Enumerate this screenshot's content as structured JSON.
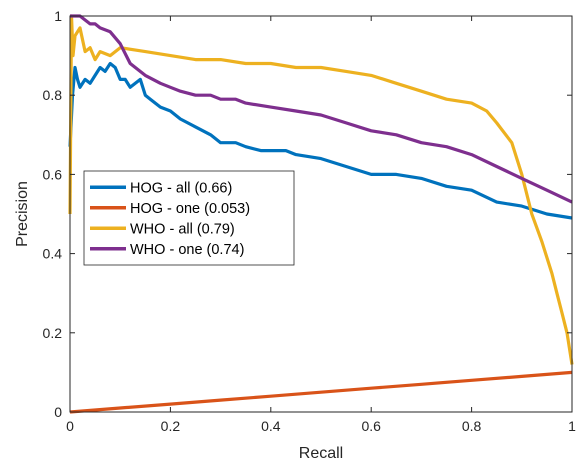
{
  "chart_data": {
    "type": "line",
    "title": "",
    "xlabel": "Recall",
    "ylabel": "Precision",
    "xlim": [
      0,
      1
    ],
    "ylim": [
      0,
      1
    ],
    "x_ticks": [
      0,
      0.2,
      0.4,
      0.6,
      0.8,
      1
    ],
    "y_ticks": [
      0,
      0.2,
      0.4,
      0.6,
      0.8,
      1
    ],
    "x_tick_labels": [
      "0",
      "0.2",
      "0.4",
      "0.6",
      "0.8",
      "1"
    ],
    "y_tick_labels": [
      "0",
      "0.2",
      "0.4",
      "0.6",
      "0.8",
      "1"
    ],
    "grid": false,
    "legend_position": "left-middle",
    "series": [
      {
        "name": "HOG - all (0.66)",
        "color": "#0072BD",
        "x": [
          0,
          0.005,
          0.01,
          0.015,
          0.02,
          0.03,
          0.04,
          0.05,
          0.06,
          0.07,
          0.08,
          0.09,
          0.1,
          0.11,
          0.12,
          0.14,
          0.15,
          0.16,
          0.18,
          0.2,
          0.22,
          0.25,
          0.28,
          0.3,
          0.33,
          0.35,
          0.38,
          0.4,
          0.43,
          0.45,
          0.5,
          0.55,
          0.6,
          0.65,
          0.7,
          0.75,
          0.8,
          0.85,
          0.9,
          0.95,
          1.0
        ],
        "y": [
          0.67,
          0.8,
          0.87,
          0.84,
          0.82,
          0.84,
          0.83,
          0.85,
          0.87,
          0.86,
          0.88,
          0.87,
          0.84,
          0.84,
          0.82,
          0.84,
          0.8,
          0.79,
          0.77,
          0.76,
          0.74,
          0.72,
          0.7,
          0.68,
          0.68,
          0.67,
          0.66,
          0.66,
          0.66,
          0.65,
          0.64,
          0.62,
          0.6,
          0.6,
          0.59,
          0.57,
          0.56,
          0.53,
          0.52,
          0.5,
          0.49
        ]
      },
      {
        "name": "HOG - one (0.053)",
        "color": "#D95319",
        "x": [
          0,
          0.1,
          0.2,
          0.3,
          0.4,
          0.5,
          0.6,
          0.7,
          0.8,
          0.9,
          1.0
        ],
        "y": [
          0,
          0.01,
          0.02,
          0.03,
          0.04,
          0.05,
          0.06,
          0.07,
          0.08,
          0.09,
          0.1
        ]
      },
      {
        "name": "WHO - all (0.79)",
        "color": "#EDB120",
        "x": [
          0,
          0.003,
          0.006,
          0.01,
          0.02,
          0.03,
          0.04,
          0.05,
          0.06,
          0.08,
          0.1,
          0.15,
          0.2,
          0.25,
          0.3,
          0.35,
          0.4,
          0.45,
          0.5,
          0.55,
          0.6,
          0.65,
          0.7,
          0.75,
          0.8,
          0.83,
          0.85,
          0.88,
          0.9,
          0.92,
          0.94,
          0.96,
          0.97,
          0.98,
          0.99,
          1.0
        ],
        "y": [
          0.5,
          1.0,
          0.9,
          0.95,
          0.97,
          0.91,
          0.92,
          0.89,
          0.91,
          0.9,
          0.92,
          0.91,
          0.9,
          0.89,
          0.89,
          0.88,
          0.88,
          0.87,
          0.87,
          0.86,
          0.85,
          0.83,
          0.81,
          0.79,
          0.78,
          0.76,
          0.73,
          0.68,
          0.6,
          0.5,
          0.43,
          0.35,
          0.3,
          0.25,
          0.2,
          0.12
        ]
      },
      {
        "name": "WHO - one (0.74)",
        "color": "#7E2F8E",
        "x": [
          0,
          0.005,
          0.01,
          0.02,
          0.03,
          0.04,
          0.05,
          0.06,
          0.08,
          0.1,
          0.12,
          0.15,
          0.18,
          0.2,
          0.22,
          0.25,
          0.28,
          0.3,
          0.33,
          0.35,
          0.4,
          0.45,
          0.5,
          0.55,
          0.6,
          0.65,
          0.7,
          0.75,
          0.8,
          0.85,
          0.9,
          0.95,
          1.0
        ],
        "y": [
          1.0,
          1.0,
          1.0,
          1.0,
          0.99,
          0.98,
          0.98,
          0.97,
          0.96,
          0.93,
          0.88,
          0.85,
          0.83,
          0.82,
          0.81,
          0.8,
          0.8,
          0.79,
          0.79,
          0.78,
          0.77,
          0.76,
          0.75,
          0.73,
          0.71,
          0.7,
          0.68,
          0.67,
          0.65,
          0.62,
          0.59,
          0.56,
          0.53
        ]
      }
    ]
  }
}
